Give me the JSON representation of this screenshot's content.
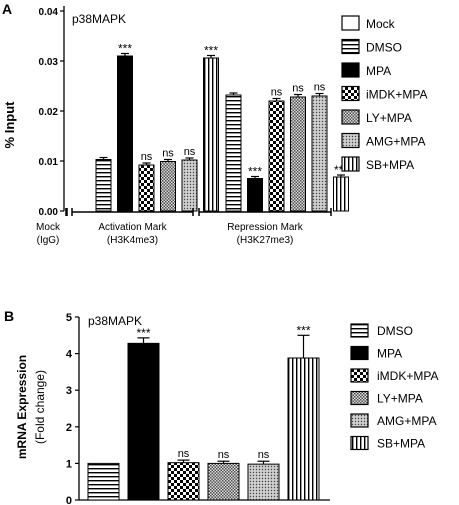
{
  "chart_data": [
    {
      "panel_label": "A",
      "type": "bar",
      "title": "p38MAPK",
      "ylabel": "% Input",
      "ylim": [
        0,
        0.04
      ],
      "yticks": [
        "0.00",
        "0.01",
        "0.02",
        "0.03",
        "0.04"
      ],
      "series_names": [
        "Mock",
        "DMSO",
        "MPA",
        "iMDK+MPA",
        "LY+MPA",
        "AMG+MPA",
        "SB+MPA"
      ],
      "groups": [
        {
          "label_lines": [
            "Mock",
            "(IgG)"
          ],
          "bars": [
            {
              "series": "Mock",
              "value": 0.0,
              "error": 0.0,
              "sig": ""
            }
          ]
        },
        {
          "label_lines": [
            "Activation Mark",
            "(H3K4me3)"
          ],
          "bars": [
            {
              "series": "DMSO",
              "value": 0.0103,
              "error": 0.0004,
              "sig": ""
            },
            {
              "series": "MPA",
              "value": 0.031,
              "error": 0.0005,
              "sig": "***"
            },
            {
              "series": "iMDK+MPA",
              "value": 0.0092,
              "error": 0.0004,
              "sig": "ns"
            },
            {
              "series": "LY+MPA",
              "value": 0.0099,
              "error": 0.0004,
              "sig": "ns"
            },
            {
              "series": "AMG+MPA",
              "value": 0.0102,
              "error": 0.0004,
              "sig": "ns"
            },
            {
              "series": "SB+MPA",
              "value": 0.0306,
              "error": 0.0005,
              "sig": "***"
            }
          ]
        },
        {
          "label_lines": [
            "Repression Mark",
            "(H3K27me3)"
          ],
          "bars": [
            {
              "series": "DMSO",
              "value": 0.0232,
              "error": 0.0004,
              "sig": ""
            },
            {
              "series": "MPA",
              "value": 0.0065,
              "error": 0.0004,
              "sig": "***"
            },
            {
              "series": "iMDK+MPA",
              "value": 0.022,
              "error": 0.0005,
              "sig": "ns"
            },
            {
              "series": "LY+MPA",
              "value": 0.0228,
              "error": 0.0005,
              "sig": "ns"
            },
            {
              "series": "AMG+MPA",
              "value": 0.023,
              "error": 0.0005,
              "sig": "ns"
            },
            {
              "series": "SB+MPA",
              "value": 0.0068,
              "error": 0.0004,
              "sig": "***"
            }
          ]
        }
      ]
    },
    {
      "panel_label": "B",
      "type": "bar",
      "title": "p38MAPK",
      "ylabel": "mRNA Expression",
      "ylabel2": "(Fold change)",
      "ylim": [
        0,
        5
      ],
      "yticks": [
        "0",
        "1",
        "2",
        "3",
        "4",
        "5"
      ],
      "series_names": [
        "DMSO",
        "MPA",
        "iMDK+MPA",
        "LY+MPA",
        "AMG+MPA",
        "SB+MPA"
      ],
      "bars": [
        {
          "series": "DMSO",
          "value": 1.0,
          "error": 0.0,
          "sig": ""
        },
        {
          "series": "MPA",
          "value": 4.28,
          "error": 0.15,
          "sig": "***"
        },
        {
          "series": "iMDK+MPA",
          "value": 1.02,
          "error": 0.07,
          "sig": "ns"
        },
        {
          "series": "LY+MPA",
          "value": 1.0,
          "error": 0.06,
          "sig": "ns"
        },
        {
          "series": "AMG+MPA",
          "value": 0.98,
          "error": 0.08,
          "sig": "ns"
        },
        {
          "series": "SB+MPA",
          "value": 3.88,
          "error": 0.62,
          "sig": "***"
        }
      ]
    }
  ]
}
